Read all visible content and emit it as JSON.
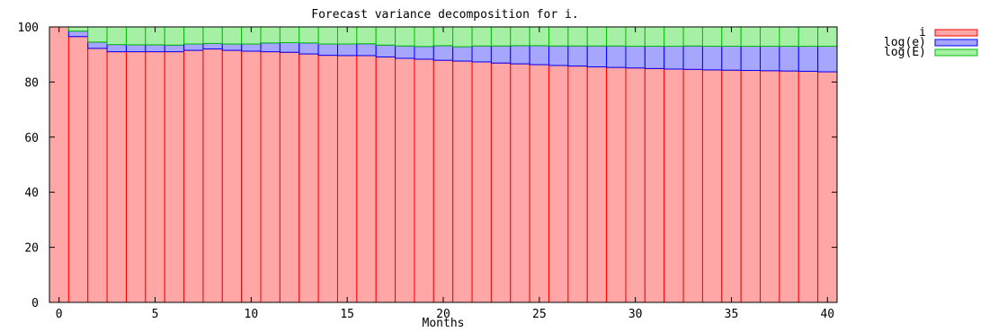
{
  "chart_data": {
    "type": "bar",
    "title": "Forecast variance decomposition for i.",
    "xlabel": "Months",
    "ylabel": "",
    "xlim": [
      0,
      41
    ],
    "ylim": [
      0,
      100
    ],
    "xticks": [
      0,
      5,
      10,
      15,
      20,
      25,
      30,
      35,
      40
    ],
    "yticks": [
      0,
      20,
      40,
      60,
      80,
      100
    ],
    "stacked": true,
    "grid": false,
    "legend_position": "top-right",
    "x": [
      0,
      1,
      2,
      3,
      4,
      5,
      6,
      7,
      8,
      9,
      10,
      11,
      12,
      13,
      14,
      15,
      16,
      17,
      18,
      19,
      20,
      21,
      22,
      23,
      24,
      25,
      26,
      27,
      28,
      29,
      30,
      31,
      32,
      33,
      34,
      35,
      36,
      37,
      38,
      39,
      40
    ],
    "series": [
      {
        "name": "i",
        "fill": "#ffa6a6",
        "edge": "#ff0000",
        "values": [
          100,
          96.5,
          92.2,
          91.0,
          91.0,
          91.0,
          91.0,
          91.5,
          92.0,
          91.5,
          91.2,
          91.0,
          90.8,
          90.2,
          89.7,
          89.6,
          89.6,
          89.1,
          88.6,
          88.3,
          87.9,
          87.6,
          87.3,
          86.9,
          86.6,
          86.3,
          86.0,
          85.8,
          85.5,
          85.3,
          85.1,
          84.9,
          84.7,
          84.6,
          84.4,
          84.3,
          84.2,
          84.1,
          84.0,
          83.9,
          83.7
        ]
      },
      {
        "name": "log(e)",
        "fill": "#a6a6ff",
        "edge": "#0000ff",
        "values": [
          0,
          2.0,
          2.3,
          2.6,
          2.5,
          2.5,
          2.4,
          2.3,
          2.0,
          2.3,
          2.6,
          3.2,
          3.5,
          4.0,
          4.1,
          4.2,
          4.3,
          4.3,
          4.5,
          4.6,
          5.3,
          5.2,
          5.8,
          6.2,
          6.6,
          6.9,
          7.1,
          7.3,
          7.6,
          7.8,
          7.9,
          8.1,
          8.3,
          8.5,
          8.6,
          8.7,
          8.8,
          8.9,
          9.0,
          9.1,
          9.3
        ]
      },
      {
        "name": "log(E)",
        "fill": "#a6f0a6",
        "edge": "#00c000",
        "values": [
          0,
          1.5,
          5.5,
          6.4,
          6.5,
          6.5,
          6.6,
          6.2,
          6.0,
          6.2,
          6.2,
          5.8,
          5.7,
          5.8,
          6.2,
          6.2,
          6.1,
          6.6,
          6.9,
          7.1,
          6.8,
          7.2,
          6.9,
          6.9,
          6.8,
          6.8,
          6.9,
          6.9,
          6.9,
          6.9,
          7.0,
          7.0,
          7.0,
          6.9,
          7.0,
          7.0,
          7.0,
          7.0,
          7.0,
          7.0,
          7.0
        ]
      }
    ]
  }
}
